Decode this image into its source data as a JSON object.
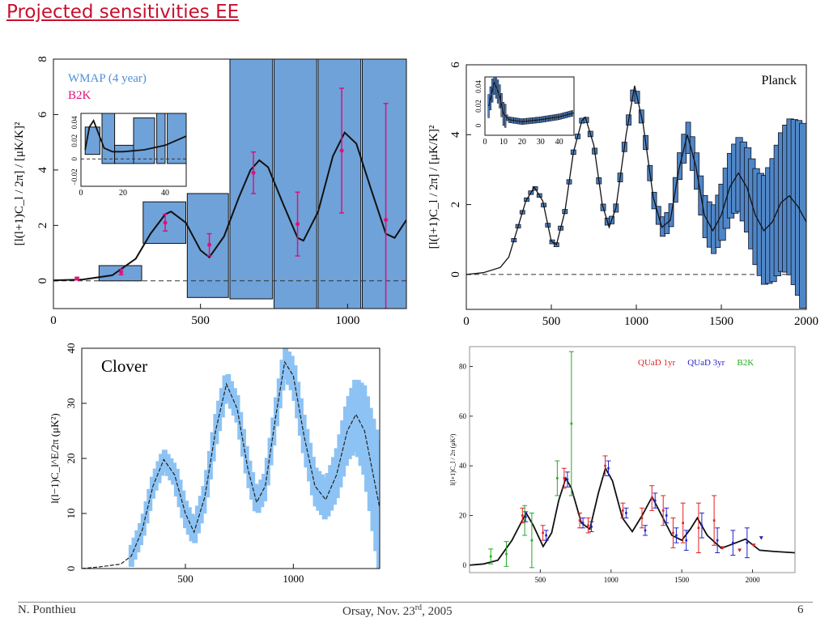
{
  "slide": {
    "title": "Projected sensitivities EE",
    "footer_left": "N. Ponthieu",
    "footer_center_main": "Orsay, Nov. 23",
    "footer_center_sup": "rd",
    "footer_center_end": ", 2005",
    "page_number": "6"
  },
  "chart_data": [
    {
      "type": "bar",
      "ylabel": "[l(l+1)C_l / 2π] / [μK/K]²",
      "xlim": [
        0,
        1200
      ],
      "ylim": [
        -1,
        8
      ],
      "xticks": [
        "0",
        "500",
        "1000"
      ],
      "yticks": [
        "0",
        "2",
        "4",
        "6",
        "8"
      ],
      "legend": [
        "WMAP (4 year)",
        "B2K"
      ],
      "boxes_wmap": [
        {
          "x0": 155,
          "x1": 300,
          "lo": 0.0,
          "hi": 0.55
        },
        {
          "x0": 305,
          "x1": 450,
          "lo": 1.35,
          "hi": 2.85
        },
        {
          "x0": 455,
          "x1": 595,
          "lo": -0.6,
          "hi": 3.15
        },
        {
          "x0": 600,
          "x1": 745,
          "lo": -0.65,
          "hi": 8.2
        },
        {
          "x0": 750,
          "x1": 895,
          "lo": -1.0,
          "hi": 8.2
        },
        {
          "x0": 900,
          "x1": 1045,
          "lo": -1.0,
          "hi": 8.2
        },
        {
          "x0": 1050,
          "x1": 1200,
          "lo": -1.0,
          "hi": 8.2
        }
      ],
      "b2k_points": [
        {
          "x": 80,
          "y": 0.08,
          "err": 0.05
        },
        {
          "x": 230,
          "y": 0.32,
          "err": 0.1
        },
        {
          "x": 380,
          "y": 2.1,
          "err": 0.3
        },
        {
          "x": 530,
          "y": 1.3,
          "err": 0.4
        },
        {
          "x": 680,
          "y": 3.9,
          "err": 0.75
        },
        {
          "x": 830,
          "y": 2.05,
          "err": 1.15
        },
        {
          "x": 980,
          "y": 4.7,
          "err": 2.25
        },
        {
          "x": 1130,
          "y": 2.2,
          "err": 4.2
        }
      ],
      "model_curve": [
        [
          0,
          0.02
        ],
        [
          100,
          0.05
        ],
        [
          200,
          0.2
        ],
        [
          280,
          0.8
        ],
        [
          330,
          1.7
        ],
        [
          380,
          2.4
        ],
        [
          400,
          2.5
        ],
        [
          450,
          2.1
        ],
        [
          500,
          1.1
        ],
        [
          530,
          0.85
        ],
        [
          580,
          1.6
        ],
        [
          630,
          3.0
        ],
        [
          670,
          4.0
        ],
        [
          700,
          4.35
        ],
        [
          730,
          4.1
        ],
        [
          780,
          2.8
        ],
        [
          830,
          1.55
        ],
        [
          850,
          1.45
        ],
        [
          900,
          2.5
        ],
        [
          950,
          4.5
        ],
        [
          990,
          5.35
        ],
        [
          1030,
          4.95
        ],
        [
          1080,
          3.3
        ],
        [
          1130,
          1.7
        ],
        [
          1160,
          1.55
        ],
        [
          1200,
          2.2
        ]
      ],
      "inset": {
        "xlim": [
          0,
          50
        ],
        "ylim": [
          -0.03,
          0.05
        ],
        "xticks": [
          "0",
          "20",
          "40"
        ],
        "yticks": [
          "−0.02",
          "0",
          "0.02",
          "0.04"
        ],
        "boxes": [
          {
            "x0": 2,
            "x1": 9,
            "lo": 0.005,
            "hi": 0.035
          },
          {
            "x0": 10,
            "x1": 16,
            "lo": -0.005,
            "hi": 0.05
          },
          {
            "x0": 16,
            "x1": 25,
            "lo": -0.005,
            "hi": 0.015
          },
          {
            "x0": 25,
            "x1": 35,
            "lo": -0.005,
            "hi": 0.045
          },
          {
            "x0": 36,
            "x1": 40,
            "lo": -0.005,
            "hi": 0.12
          },
          {
            "x0": 41,
            "x1": 50,
            "lo": -0.005,
            "hi": 0.12
          }
        ],
        "curve": [
          [
            2,
            0.01
          ],
          [
            4,
            0.035
          ],
          [
            6,
            0.042
          ],
          [
            8,
            0.03
          ],
          [
            11,
            0.012
          ],
          [
            15,
            0.008
          ],
          [
            20,
            0.008
          ],
          [
            30,
            0.01
          ],
          [
            40,
            0.015
          ],
          [
            50,
            0.025
          ]
        ],
        "baseline": 0.0
      }
    },
    {
      "type": "bar",
      "ylabel": "[l(l+1)C_l / 2π] / [μK/K]²",
      "label": "Planck",
      "xlim": [
        0,
        2000
      ],
      "ylim": [
        -1,
        6
      ],
      "xticks": [
        "0",
        "500",
        "1000",
        "1500",
        "2000"
      ],
      "yticks": [
        "0",
        "2",
        "4",
        "6"
      ],
      "model_curve": [
        [
          0,
          0.0
        ],
        [
          100,
          0.05
        ],
        [
          200,
          0.2
        ],
        [
          250,
          0.5
        ],
        [
          300,
          1.3
        ],
        [
          350,
          2.1
        ],
        [
          400,
          2.5
        ],
        [
          450,
          2.1
        ],
        [
          500,
          0.95
        ],
        [
          530,
          0.85
        ],
        [
          580,
          1.8
        ],
        [
          630,
          3.5
        ],
        [
          680,
          4.4
        ],
        [
          700,
          4.5
        ],
        [
          750,
          3.7
        ],
        [
          800,
          2.0
        ],
        [
          840,
          1.35
        ],
        [
          880,
          1.9
        ],
        [
          940,
          4.0
        ],
        [
          990,
          5.4
        ],
        [
          1040,
          4.3
        ],
        [
          1100,
          2.2
        ],
        [
          1150,
          1.35
        ],
        [
          1200,
          1.55
        ],
        [
          1250,
          3.0
        ],
        [
          1300,
          4.0
        ],
        [
          1350,
          3.1
        ],
        [
          1400,
          1.7
        ],
        [
          1450,
          1.25
        ],
        [
          1500,
          1.7
        ],
        [
          1550,
          2.5
        ],
        [
          1600,
          2.9
        ],
        [
          1650,
          2.5
        ],
        [
          1700,
          1.7
        ],
        [
          1750,
          1.25
        ],
        [
          1800,
          1.5
        ],
        [
          1850,
          2.05
        ],
        [
          1900,
          2.25
        ],
        [
          1950,
          1.95
        ],
        [
          2000,
          1.5
        ]
      ],
      "inset": {
        "xlim": [
          0,
          48
        ],
        "ylim": [
          -0.01,
          0.05
        ],
        "xticks": [
          "0",
          "10",
          "20",
          "30",
          "40"
        ],
        "yticks": [
          "0",
          "0.02",
          "0.04"
        ],
        "curve": [
          [
            2,
            0.02
          ],
          [
            4,
            0.036
          ],
          [
            5,
            0.044
          ],
          [
            6,
            0.04
          ],
          [
            8,
            0.03
          ],
          [
            10,
            0.012
          ],
          [
            13,
            0.006
          ],
          [
            20,
            0.004
          ],
          [
            30,
            0.006
          ],
          [
            40,
            0.009
          ],
          [
            48,
            0.013
          ]
        ]
      }
    },
    {
      "type": "area",
      "title": "Clover",
      "ylabel": "l(l−1)C_l^E/2π (μK²)",
      "xlim": [
        20,
        1400
      ],
      "ylim": [
        0,
        40
      ],
      "xticks": [
        "500",
        "1000"
      ],
      "yticks": [
        "0",
        "10",
        "20",
        "30",
        "40"
      ],
      "model_curve": [
        [
          20,
          0.0
        ],
        [
          100,
          0.3
        ],
        [
          200,
          0.8
        ],
        [
          250,
          2.3
        ],
        [
          300,
          7.0
        ],
        [
          350,
          15.0
        ],
        [
          400,
          19.8
        ],
        [
          450,
          17.0
        ],
        [
          500,
          10.0
        ],
        [
          540,
          6.6
        ],
        [
          590,
          13.0
        ],
        [
          640,
          25.0
        ],
        [
          690,
          33.5
        ],
        [
          740,
          29.0
        ],
        [
          790,
          18.0
        ],
        [
          830,
          12.0
        ],
        [
          870,
          15.0
        ],
        [
          920,
          28.0
        ],
        [
          960,
          37.5
        ],
        [
          1000,
          35.0
        ],
        [
          1050,
          24.0
        ],
        [
          1100,
          15.0
        ],
        [
          1150,
          12.5
        ],
        [
          1200,
          17.0
        ],
        [
          1250,
          25.0
        ],
        [
          1290,
          28.0
        ],
        [
          1330,
          25.0
        ],
        [
          1370,
          17.0
        ],
        [
          1400,
          11.0
        ]
      ],
      "errors": [
        [
          450,
          2.5
        ],
        [
          500,
          2.5
        ],
        [
          550,
          2.5
        ],
        [
          600,
          2.5
        ],
        [
          650,
          2.8
        ],
        [
          700,
          2.5
        ],
        [
          750,
          2.5
        ],
        [
          800,
          2.5
        ],
        [
          850,
          2.5
        ],
        [
          900,
          2.5
        ],
        [
          950,
          2.8
        ],
        [
          1000,
          3.2
        ],
        [
          1050,
          3.5
        ],
        [
          1100,
          3.5
        ],
        [
          1150,
          3.8
        ],
        [
          1200,
          4.5
        ],
        [
          1250,
          5.5
        ],
        [
          1300,
          7.0
        ],
        [
          1350,
          9.0
        ],
        [
          1400,
          12.0
        ]
      ]
    },
    {
      "type": "scatter",
      "ylabel": "l(l+1)C_l / 2π (μK²)",
      "xlim": [
        0,
        2300
      ],
      "ylim": [
        -3,
        88
      ],
      "xticks": [
        "500",
        "1000",
        "1500",
        "2000"
      ],
      "yticks": [
        "0",
        "20",
        "40",
        "60",
        "80"
      ],
      "legend": [
        {
          "name": "QUaD 1yr",
          "color": "#dd2222"
        },
        {
          "name": "QUaD 3yr",
          "color": "#2222cc"
        },
        {
          "name": "B2K",
          "color": "#22aa22"
        }
      ],
      "model_curve": [
        [
          0,
          0.0
        ],
        [
          100,
          0.5
        ],
        [
          200,
          2.0
        ],
        [
          300,
          10.0
        ],
        [
          400,
          21.0
        ],
        [
          450,
          16.0
        ],
        [
          520,
          7.5
        ],
        [
          580,
          13.0
        ],
        [
          630,
          26.0
        ],
        [
          680,
          35.0
        ],
        [
          720,
          31.0
        ],
        [
          790,
          17.0
        ],
        [
          850,
          14.5
        ],
        [
          910,
          29.0
        ],
        [
          960,
          39.0
        ],
        [
          1010,
          34.0
        ],
        [
          1080,
          19.0
        ],
        [
          1150,
          13.5
        ],
        [
          1220,
          20.0
        ],
        [
          1290,
          27.5
        ],
        [
          1340,
          22.0
        ],
        [
          1430,
          12.0
        ],
        [
          1500,
          10.0
        ],
        [
          1560,
          14.5
        ],
        [
          1610,
          19.0
        ],
        [
          1680,
          12.0
        ],
        [
          1780,
          6.8
        ],
        [
          1860,
          8.5
        ],
        [
          1950,
          10.5
        ],
        [
          2050,
          6.0
        ],
        [
          2150,
          5.5
        ],
        [
          2300,
          5.0
        ]
      ],
      "quad1": [
        [
          385,
          20,
          3
        ],
        [
          530,
          13,
          3
        ],
        [
          680,
          35,
          4
        ],
        [
          790,
          18,
          3
        ],
        [
          850,
          16,
          3
        ],
        [
          970,
          40,
          4
        ],
        [
          1095,
          22,
          3
        ],
        [
          1230,
          19,
          4
        ],
        [
          1300,
          27,
          5
        ],
        [
          1380,
          22,
          6
        ],
        [
          1450,
          13,
          6
        ],
        [
          1520,
          17,
          8
        ],
        [
          1630,
          15,
          10
        ],
        [
          1740,
          18,
          10
        ],
        [
          1800,
          7,
          0
        ],
        [
          1920,
          6,
          0
        ],
        [
          2020,
          8,
          0
        ]
      ],
      "quad3": [
        [
          385,
          19.5,
          2
        ],
        [
          530,
          12,
          2
        ],
        [
          680,
          34.5,
          3
        ],
        [
          790,
          17,
          2
        ],
        [
          850,
          15.5,
          2
        ],
        [
          970,
          39,
          3
        ],
        [
          1095,
          21,
          2
        ],
        [
          1230,
          14,
          2
        ],
        [
          1300,
          26,
          3
        ],
        [
          1380,
          20,
          3
        ],
        [
          1450,
          12,
          3
        ],
        [
          1520,
          10,
          4
        ],
        [
          1630,
          16,
          5
        ],
        [
          1740,
          10,
          5
        ],
        [
          1850,
          9,
          5
        ],
        [
          1950,
          9,
          6
        ],
        [
          2050,
          11,
          0
        ]
      ],
      "b2k": [
        [
          150,
          3.5,
          3
        ],
        [
          260,
          4.5,
          5
        ],
        [
          390,
          18,
          6
        ],
        [
          440,
          10,
          11
        ],
        [
          620,
          35,
          7
        ],
        [
          720,
          57,
          29
        ]
      ]
    }
  ]
}
